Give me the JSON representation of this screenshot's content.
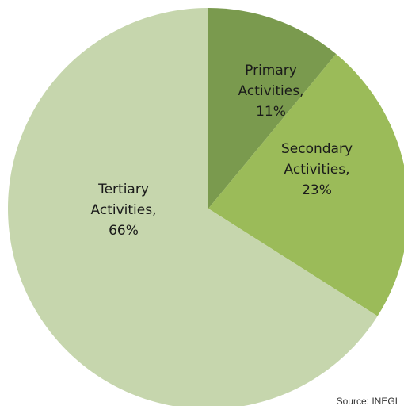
{
  "chart_data": {
    "type": "pie",
    "title": "",
    "categories": [
      "Primary Activities",
      "Secondary Activities",
      "Tertiary Activities"
    ],
    "values": [
      11,
      23,
      66
    ],
    "unit": "%",
    "slices": [
      {
        "name": "Primary Activities",
        "value": 11,
        "color": "#7a9a4e",
        "label_lines": [
          "Primary",
          "Activities,",
          "11%"
        ]
      },
      {
        "name": "Secondary Activities",
        "value": 23,
        "color": "#9bbb59",
        "label_lines": [
          "Secondary",
          "Activities,",
          "23%"
        ]
      },
      {
        "name": "Tertiary Activities",
        "value": 66,
        "color": "#c6d6ad",
        "label_lines": [
          "Tertiary",
          "Activities,",
          "66%"
        ]
      }
    ],
    "start_angle": "12 o'clock",
    "direction": "clockwise",
    "legend": "none",
    "source_note": "Source: INEGI"
  }
}
